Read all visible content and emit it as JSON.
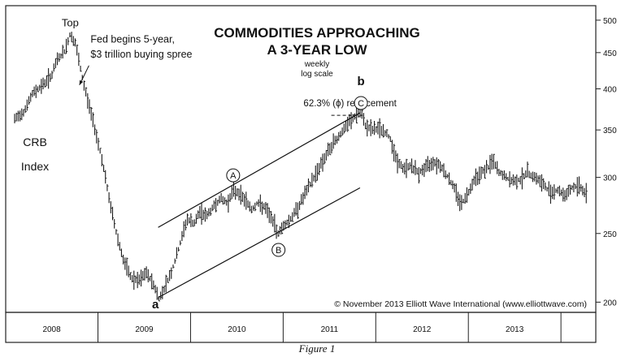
{
  "chart_data": {
    "type": "ohlc",
    "title_line1": "COMMODITIES APPROACHING",
    "title_line2": "A 3-YEAR LOW",
    "subtitle_line1": "weekly",
    "subtitle_line2": "log scale",
    "scale": "log",
    "ylim": [
      195,
      520
    ],
    "xlim": [
      2007.6,
      2013.85
    ],
    "y_ticks": [
      {
        "value": 500,
        "label": "500"
      },
      {
        "value": 450,
        "label": "450"
      },
      {
        "value": 400,
        "label": "400"
      },
      {
        "value": 350,
        "label": "350"
      },
      {
        "value": 300,
        "label": "300"
      },
      {
        "value": 250,
        "label": "250"
      },
      {
        "value": 200,
        "label": "200"
      }
    ],
    "x_ticks": [
      {
        "value": 2008.0,
        "label": "2008"
      },
      {
        "value": 2009.0,
        "label": "2009"
      },
      {
        "value": 2010.0,
        "label": "2010"
      },
      {
        "value": 2011.0,
        "label": "2011"
      },
      {
        "value": 2012.0,
        "label": "2012"
      },
      {
        "value": 2013.0,
        "label": "2013"
      }
    ],
    "year_separators": [
      2008.5,
      2009.5,
      2010.5,
      2011.5,
      2012.5,
      2013.5
    ],
    "series": [
      {
        "name": "CRB Index",
        "anchors": [
          [
            2007.6,
            362
          ],
          [
            2007.7,
            372
          ],
          [
            2007.8,
            395
          ],
          [
            2007.9,
            405
          ],
          [
            2008.0,
            418
          ],
          [
            2008.06,
            440
          ],
          [
            2008.14,
            452
          ],
          [
            2008.2,
            478
          ],
          [
            2008.26,
            462
          ],
          [
            2008.32,
            420
          ],
          [
            2008.38,
            390
          ],
          [
            2008.46,
            355
          ],
          [
            2008.54,
            320
          ],
          [
            2008.62,
            280
          ],
          [
            2008.7,
            250
          ],
          [
            2008.78,
            228
          ],
          [
            2008.86,
            216
          ],
          [
            2008.94,
            214
          ],
          [
            2009.02,
            220
          ],
          [
            2009.1,
            212
          ],
          [
            2009.16,
            202
          ],
          [
            2009.22,
            210
          ],
          [
            2009.3,
            222
          ],
          [
            2009.38,
            240
          ],
          [
            2009.46,
            262
          ],
          [
            2009.54,
            258
          ],
          [
            2009.6,
            268
          ],
          [
            2009.68,
            265
          ],
          [
            2009.74,
            272
          ],
          [
            2009.82,
            280
          ],
          [
            2009.9,
            276
          ],
          [
            2009.96,
            288
          ],
          [
            2010.02,
            285
          ],
          [
            2010.1,
            278
          ],
          [
            2010.16,
            270
          ],
          [
            2010.22,
            276
          ],
          [
            2010.3,
            272
          ],
          [
            2010.38,
            262
          ],
          [
            2010.44,
            250
          ],
          [
            2010.5,
            256
          ],
          [
            2010.58,
            262
          ],
          [
            2010.66,
            272
          ],
          [
            2010.74,
            285
          ],
          [
            2010.82,
            298
          ],
          [
            2010.9,
            312
          ],
          [
            2010.98,
            325
          ],
          [
            2011.06,
            338
          ],
          [
            2011.14,
            348
          ],
          [
            2011.22,
            360
          ],
          [
            2011.3,
            368
          ],
          [
            2011.34,
            372
          ],
          [
            2011.38,
            356
          ],
          [
            2011.46,
            350
          ],
          [
            2011.54,
            352
          ],
          [
            2011.62,
            345
          ],
          [
            2011.66,
            340
          ],
          [
            2011.72,
            318
          ],
          [
            2011.8,
            308
          ],
          [
            2011.88,
            312
          ],
          [
            2011.96,
            304
          ],
          [
            2012.04,
            310
          ],
          [
            2012.12,
            316
          ],
          [
            2012.2,
            312
          ],
          [
            2012.28,
            300
          ],
          [
            2012.36,
            288
          ],
          [
            2012.42,
            275
          ],
          [
            2012.48,
            282
          ],
          [
            2012.56,
            298
          ],
          [
            2012.64,
            305
          ],
          [
            2012.72,
            310
          ],
          [
            2012.76,
            318
          ],
          [
            2012.82,
            306
          ],
          [
            2012.9,
            300
          ],
          [
            2012.98,
            296
          ],
          [
            2013.06,
            298
          ],
          [
            2013.14,
            305
          ],
          [
            2013.22,
            300
          ],
          [
            2013.3,
            294
          ],
          [
            2013.38,
            286
          ],
          [
            2013.46,
            288
          ],
          [
            2013.54,
            283
          ],
          [
            2013.62,
            290
          ],
          [
            2013.7,
            292
          ],
          [
            2013.78,
            283
          ]
        ]
      }
    ],
    "channel_lines": [
      {
        "from": [
          2009.15,
          255
        ],
        "to": [
          2011.33,
          370
        ]
      },
      {
        "from": [
          2009.15,
          203
        ],
        "to": [
          2011.33,
          290
        ]
      }
    ],
    "retracement_line": {
      "from": [
        2011.02,
        367
      ],
      "to": [
        2011.36,
        367
      ]
    },
    "annotations": [
      {
        "id": "top",
        "text": "Top",
        "x": 2008.2,
        "y": 490
      },
      {
        "id": "fed1",
        "text": "Fed begins 5-year,",
        "x": 2008.42,
        "y": 465
      },
      {
        "id": "fed2",
        "text": "$3 trillion buying spree",
        "x": 2008.42,
        "y": 443
      },
      {
        "id": "crb1",
        "text": "CRB",
        "x": 2007.82,
        "y": 332
      },
      {
        "id": "crb2",
        "text": "Index",
        "x": 2007.82,
        "y": 307
      },
      {
        "id": "retr",
        "text": "62.3% (ϕ) retracement",
        "x": 2010.72,
        "y": 378
      },
      {
        "id": "a_label",
        "text": "a",
        "x": 2009.12,
        "y": 196
      },
      {
        "id": "b_label",
        "text": "b",
        "x": 2011.34,
        "y": 405
      },
      {
        "id": "circle_A",
        "text": "A",
        "x": 2009.96,
        "y": 302
      },
      {
        "id": "circle_B",
        "text": "B",
        "x": 2010.45,
        "y": 237
      },
      {
        "id": "circle_C",
        "text": "C",
        "x": 2011.34,
        "y": 382
      },
      {
        "id": "copyright",
        "text": "© November 2013 Elliott Wave International (www.elliottwave.com)",
        "x": 2013.78,
        "y": 197
      }
    ]
  },
  "caption": "Figure 1"
}
